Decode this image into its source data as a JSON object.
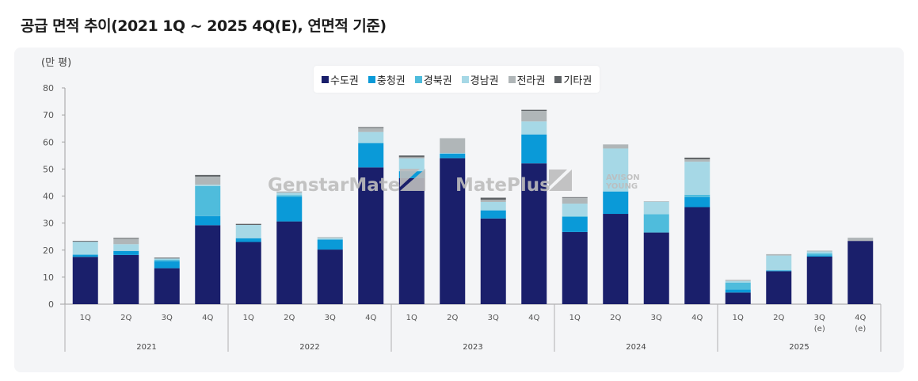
{
  "title": "공급 면적 추이(2021 1Q ~ 2025 4Q(E), 연면적 기준)",
  "watermarks": [
    "GenstarMate",
    "MatePlus",
    "AVISON YOUNG"
  ],
  "chart_data": {
    "type": "bar",
    "stacked": true,
    "title": "공급 면적 추이(2021 1Q ~ 2025 4Q(E), 연면적 기준)",
    "ylabel": "(만 평)",
    "xlabel": "",
    "ylim": [
      0,
      80
    ],
    "yticks": [
      0,
      10,
      20,
      30,
      40,
      50,
      60,
      70,
      80
    ],
    "grid": false,
    "legend": "top-center",
    "years": [
      "2021",
      "2022",
      "2023",
      "2024",
      "2025"
    ],
    "categories": [
      {
        "q": "1Q",
        "e": ""
      },
      {
        "q": "2Q",
        "e": ""
      },
      {
        "q": "3Q",
        "e": ""
      },
      {
        "q": "4Q",
        "e": ""
      },
      {
        "q": "1Q",
        "e": ""
      },
      {
        "q": "2Q",
        "e": ""
      },
      {
        "q": "3Q",
        "e": ""
      },
      {
        "q": "4Q",
        "e": ""
      },
      {
        "q": "1Q",
        "e": ""
      },
      {
        "q": "2Q",
        "e": ""
      },
      {
        "q": "3Q",
        "e": ""
      },
      {
        "q": "4Q",
        "e": ""
      },
      {
        "q": "1Q",
        "e": ""
      },
      {
        "q": "2Q",
        "e": ""
      },
      {
        "q": "3Q",
        "e": ""
      },
      {
        "q": "4Q",
        "e": ""
      },
      {
        "q": "1Q",
        "e": ""
      },
      {
        "q": "2Q",
        "e": ""
      },
      {
        "q": "3Q",
        "e": "(e)"
      },
      {
        "q": "4Q",
        "e": "(e)"
      }
    ],
    "series": [
      {
        "name": "수도권",
        "color": "#1a1f6b",
        "values": [
          17.5,
          18.2,
          13.3,
          29.2,
          23.0,
          30.6,
          20.2,
          50.6,
          46.6,
          54.0,
          31.7,
          52.1,
          26.7,
          33.4,
          26.5,
          35.9,
          4.3,
          12.2,
          17.6,
          23.4
        ]
      },
      {
        "name": "충청권",
        "color": "#0a9ad8",
        "values": [
          0.8,
          1.5,
          2.6,
          3.4,
          1.4,
          9.1,
          3.7,
          9.0,
          2.6,
          1.7,
          3.0,
          10.7,
          5.6,
          8.3,
          0,
          3.7,
          1.1,
          0.3,
          0.4,
          0
        ]
      },
      {
        "name": "경북권",
        "color": "#4fbcdc",
        "values": [
          0,
          0,
          0.6,
          11.1,
          0,
          0.6,
          0,
          0,
          0,
          0,
          0,
          0,
          0.3,
          0,
          6.8,
          0.9,
          2.6,
          0,
          0.8,
          0
        ]
      },
      {
        "name": "경남권",
        "color": "#a6d8e6",
        "values": [
          4.8,
          2.5,
          0.4,
          0.5,
          4.9,
          0.9,
          0.6,
          4.1,
          4.7,
          0.2,
          3.1,
          4.8,
          4.6,
          15.9,
          4.6,
          12.2,
          0.6,
          5.5,
          0.7,
          0
        ]
      },
      {
        "name": "전라권",
        "color": "#b0b6b8",
        "values": [
          0,
          2.0,
          0,
          3.0,
          0,
          0.5,
          0.3,
          1.5,
          0.5,
          5.5,
          0.8,
          3.9,
          2.2,
          1.5,
          0.2,
          0.9,
          0.4,
          0.5,
          0.3,
          1.2
        ]
      },
      {
        "name": "기타권",
        "color": "#5f6366",
        "values": [
          0.3,
          0.3,
          0.3,
          0.6,
          0.4,
          0,
          0,
          0.3,
          0.6,
          0,
          0.8,
          0.4,
          0.2,
          0,
          0,
          0.6,
          0,
          0,
          0,
          0
        ]
      }
    ]
  }
}
